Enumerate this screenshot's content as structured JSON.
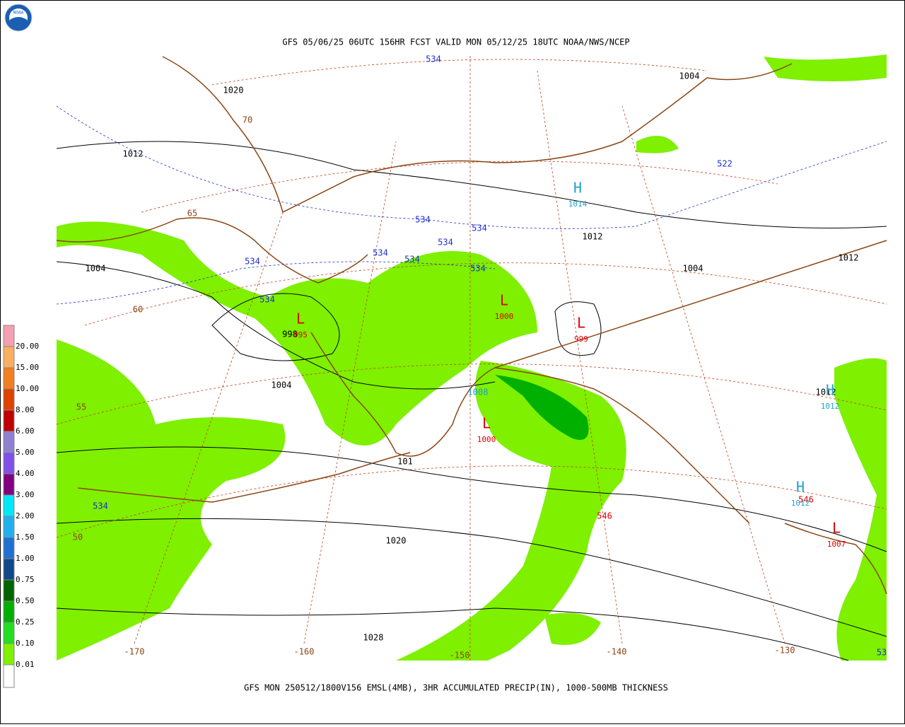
{
  "header": {
    "title": "GFS 05/06/25 06UTC 156HR FCST VALID MON 05/12/25 18UTC NOAA/NWS/NCEP",
    "logo": "NOAA"
  },
  "footer": {
    "caption": "GFS MON 250512/1800V156 EMSL(4MB), 3HR ACCUMULATED PRECIP(IN), 1000-500MB THICKNESS"
  },
  "legend": {
    "items": [
      {
        "label": "20.00",
        "color": "#f4a0b0"
      },
      {
        "label": "15.00",
        "color": "#f8b060"
      },
      {
        "label": "10.00",
        "color": "#f08020"
      },
      {
        "label": "8.00",
        "color": "#e04000"
      },
      {
        "label": "6.00",
        "color": "#c00000"
      },
      {
        "label": "5.00",
        "color": "#9080d0"
      },
      {
        "label": "4.00",
        "color": "#8050e8"
      },
      {
        "label": "3.00",
        "color": "#800080"
      },
      {
        "label": "2.00",
        "color": "#00e8f8"
      },
      {
        "label": "1.50",
        "color": "#20b0f0"
      },
      {
        "label": "1.00",
        "color": "#2070d0"
      },
      {
        "label": "0.75",
        "color": "#104888"
      },
      {
        "label": "0.50",
        "color": "#006400"
      },
      {
        "label": "0.25",
        "color": "#00b000"
      },
      {
        "label": "0.10",
        "color": "#20e020"
      },
      {
        "label": "0.01",
        "color": "#80f000"
      }
    ]
  },
  "map": {
    "pressure_labels": [
      "1020",
      "1012",
      "1004",
      "998",
      "1004",
      "1012",
      "1004",
      "1012",
      "1004",
      "1020",
      "1028",
      "101",
      "1012"
    ],
    "thickness_labels": [
      "534",
      "534",
      "534",
      "534",
      "534",
      "534",
      "534",
      "534",
      "534",
      "534",
      "522",
      "53",
      "546",
      "546"
    ],
    "latitude_labels": [
      "70",
      "65",
      "60",
      "55",
      "50"
    ],
    "longitude_labels": [
      "-170",
      "-160",
      "-150",
      "-140",
      "-130"
    ],
    "centers": [
      {
        "symbol": "L",
        "pressure": "995"
      },
      {
        "symbol": "L",
        "pressure": "1000"
      },
      {
        "symbol": "L",
        "pressure": "999"
      },
      {
        "symbol": "L",
        "pressure": "1000"
      },
      {
        "symbol": "L",
        "pressure": "1007"
      },
      {
        "symbol": "H",
        "pressure": "1014"
      },
      {
        "symbol": "H",
        "pressure": "1012"
      },
      {
        "symbol": "H",
        "pressure": "1012"
      }
    ],
    "other_labels": [
      "1008"
    ]
  }
}
